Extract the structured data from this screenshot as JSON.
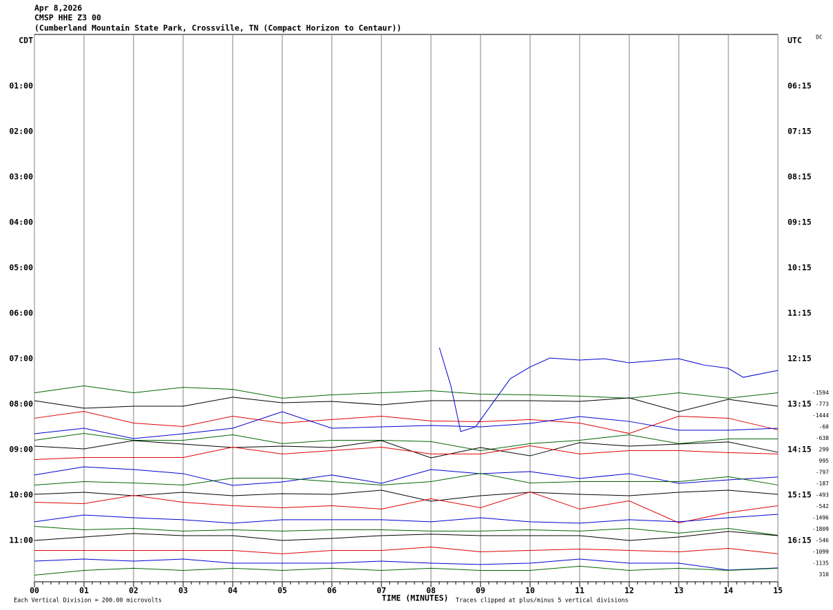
{
  "chart_data": {
    "type": "helicorder",
    "title": [
      "Apr 8,2026",
      "CMSP HHE Z3 00",
      "(Cumberland Mountain State Park, Crossville, TN (Compact Horizon to Centaur))"
    ],
    "corner_label": "DC",
    "xlabel": "TIME (MINUTES)",
    "footer_left": "Each Vertical Division =  200.00 microvolts",
    "footer_right": "Traces clipped at plus/minus 5 vertical divisions",
    "xlim": [
      0,
      15
    ],
    "xticks": [
      {
        "value": 0,
        "label": "00"
      },
      {
        "value": 1,
        "label": "01"
      },
      {
        "value": 2,
        "label": "02"
      },
      {
        "value": 3,
        "label": "03"
      },
      {
        "value": 4,
        "label": "04"
      },
      {
        "value": 5,
        "label": "05"
      },
      {
        "value": 6,
        "label": "06"
      },
      {
        "value": 7,
        "label": "07"
      },
      {
        "value": 8,
        "label": "08"
      },
      {
        "value": 9,
        "label": "09"
      },
      {
        "value": 10,
        "label": "10"
      },
      {
        "value": 11,
        "label": "11"
      },
      {
        "value": 12,
        "label": "12"
      },
      {
        "value": 13,
        "label": "13"
      },
      {
        "value": 14,
        "label": "14"
      },
      {
        "value": 15,
        "label": "15"
      }
    ],
    "ylim": [
      -0.55,
      47.64
    ],
    "yticks": [
      {
        "value": 0,
        "label": "CDT"
      },
      {
        "value": 4,
        "label": "01:00"
      },
      {
        "value": 8,
        "label": "02:00"
      },
      {
        "value": 12,
        "label": "03:00"
      },
      {
        "value": 16,
        "label": "04:00"
      },
      {
        "value": 20,
        "label": "05:00"
      },
      {
        "value": 24,
        "label": "06:00"
      },
      {
        "value": 28,
        "label": "07:00"
      },
      {
        "value": 32,
        "label": "08:00"
      },
      {
        "value": 36,
        "label": "09:00"
      },
      {
        "value": 40,
        "label": "10:00"
      },
      {
        "value": 44,
        "label": "11:00"
      }
    ],
    "y2ticks": [
      {
        "value": 0,
        "label": "UTC"
      },
      {
        "value": 4,
        "label": "06:15"
      },
      {
        "value": 8,
        "label": "07:15"
      },
      {
        "value": 12,
        "label": "08:15"
      },
      {
        "value": 16,
        "label": "09:15"
      },
      {
        "value": 20,
        "label": "10:15"
      },
      {
        "value": 24,
        "label": "11:15"
      },
      {
        "value": 28,
        "label": "12:15"
      },
      {
        "value": 32,
        "label": "13:15"
      },
      {
        "value": 36,
        "label": "14:15"
      },
      {
        "value": 40,
        "label": "15:15"
      },
      {
        "value": 44,
        "label": "16:15"
      }
    ],
    "trace_labels": [
      {
        "value": 31,
        "label": "-1594"
      },
      {
        "value": 32,
        "label": "-773"
      },
      {
        "value": 33,
        "label": "-1444"
      },
      {
        "value": 34,
        "label": "-60"
      },
      {
        "value": 35,
        "label": "-638"
      },
      {
        "value": 36,
        "label": "299"
      },
      {
        "value": 37,
        "label": "995"
      },
      {
        "value": 38,
        "label": "-797"
      },
      {
        "value": 39,
        "label": "-187"
      },
      {
        "value": 40,
        "label": "-493"
      },
      {
        "value": 41,
        "label": "-542"
      },
      {
        "value": 42,
        "label": "-1496"
      },
      {
        "value": 43,
        "label": "-1809"
      },
      {
        "value": 44,
        "label": "-546"
      },
      {
        "value": 45,
        "label": "-1099"
      },
      {
        "value": 46,
        "label": "-1135"
      },
      {
        "value": 47,
        "label": "310"
      }
    ],
    "grid": true,
    "x": [
      0,
      1,
      2,
      3,
      4,
      5,
      6,
      7,
      8,
      9,
      10,
      11,
      12,
      13,
      14,
      15
    ],
    "series": [
      {
        "color": "#006400",
        "values": [
          31,
          30.39,
          31,
          30.52,
          30.7,
          31.48,
          31.18,
          31,
          30.82,
          31.12,
          31.18,
          31.3,
          31.48,
          31,
          31.48,
          31
        ]
      },
      {
        "color": "#000000",
        "values": [
          31.7,
          32.36,
          32.18,
          32.18,
          31.39,
          31.88,
          31.76,
          32.06,
          31.7,
          31.7,
          31.7,
          31.76,
          31.45,
          32.67,
          31.58,
          32.18
        ]
      },
      {
        "color": "#e00000",
        "values": [
          33.24,
          32.64,
          33.67,
          33.97,
          33.06,
          33.67,
          33.36,
          33.06,
          33.48,
          33.55,
          33.36,
          33.67,
          34.58,
          33.06,
          33.24,
          34.27
        ]
      },
      {
        "color": "#0000d0",
        "values": [
          34.61,
          34.12,
          35.03,
          34.61,
          34.12,
          32.67,
          34.12,
          34,
          33.88,
          34,
          33.7,
          33.09,
          33.52,
          34.3,
          34.3,
          34.12
        ]
      },
      {
        "color": "#006400",
        "values": [
          35.18,
          34.58,
          35.18,
          35.18,
          34.7,
          35.48,
          35.18,
          35.18,
          35.3,
          36.09,
          35.48,
          35.18,
          34.7,
          35.48,
          35.06,
          35.06
        ]
      },
      {
        "color": "#000000",
        "values": [
          35.7,
          35.94,
          35.21,
          35.52,
          35.82,
          35.7,
          35.82,
          35.21,
          36.73,
          35.82,
          36.55,
          35.39,
          35.7,
          35.52,
          35.33,
          36.24
        ]
      },
      {
        "color": "#e00000",
        "values": [
          36.88,
          36.7,
          36.7,
          36.7,
          35.79,
          36.39,
          36.09,
          35.79,
          36.39,
          36.39,
          35.67,
          36.39,
          36.09,
          36.09,
          36.27,
          36.39
        ]
      },
      {
        "color": "#0000d0",
        "values": [
          38.24,
          37.52,
          37.76,
          38.12,
          39.15,
          38.85,
          38.24,
          38.97,
          37.76,
          38.12,
          37.94,
          38.55,
          38.12,
          38.97,
          38.67,
          38.42
        ]
      },
      {
        "color": "#006400",
        "values": [
          39.12,
          38.82,
          38.94,
          39.12,
          38.52,
          38.52,
          38.82,
          39.12,
          38.82,
          38.09,
          38.94,
          38.82,
          38.82,
          38.82,
          38.39,
          39.12
        ]
      },
      {
        "color": "#000000",
        "values": [
          39.94,
          39.76,
          40.06,
          39.76,
          40.06,
          39.88,
          39.94,
          39.58,
          40.55,
          40.06,
          39.76,
          39.94,
          40.06,
          39.76,
          39.58,
          39.94
        ]
      },
      {
        "color": "#e00000",
        "values": [
          40.64,
          40.76,
          40.03,
          40.64,
          40.94,
          41.12,
          40.94,
          41.24,
          40.33,
          41.12,
          39.73,
          41.24,
          40.52,
          42.45,
          41.55,
          40.94
        ]
      },
      {
        "color": "#0000d0",
        "values": [
          42.36,
          41.76,
          42,
          42.18,
          42.48,
          42.18,
          42.18,
          42.18,
          42.36,
          42,
          42.36,
          42.48,
          42.18,
          42.36,
          42,
          41.7
        ]
      },
      {
        "color": "#006400",
        "values": [
          42.76,
          43.06,
          42.94,
          43.18,
          43.06,
          43.18,
          43.06,
          43.06,
          43.18,
          43.18,
          43.06,
          43.18,
          42.94,
          43.36,
          42.94,
          43.55
        ]
      },
      {
        "color": "#000000",
        "values": [
          44,
          43.7,
          43.39,
          43.58,
          43.58,
          44,
          43.82,
          43.58,
          43.45,
          43.58,
          43.58,
          43.58,
          44,
          43.7,
          43.21,
          43.58
        ]
      },
      {
        "color": "#e00000",
        "values": [
          44.88,
          44.88,
          44.88,
          44.88,
          44.88,
          45.18,
          44.88,
          44.88,
          44.58,
          45,
          44.88,
          44.76,
          44.88,
          45,
          44.7,
          45.18
        ]
      },
      {
        "color": "#0000d0",
        "values": [
          45.82,
          45.64,
          45.82,
          45.64,
          46,
          46,
          46,
          45.82,
          46,
          46.12,
          46,
          45.64,
          46,
          46,
          46.61,
          46.42
        ]
      },
      {
        "color": "#006400",
        "values": [
          47.06,
          46.64,
          46.45,
          46.64,
          46.45,
          46.64,
          46.45,
          46.64,
          46.45,
          46.64,
          46.64,
          46.27,
          46.64,
          46.45,
          46.64,
          46.45
        ]
      },
      {
        "color": "#0000d0",
        "x": [
          8.17,
          8.4,
          8.6,
          8.9,
          9.2,
          9.6,
          10,
          10.4,
          11,
          11.5,
          12,
          13,
          13.5,
          14,
          14.3,
          15
        ],
        "values": [
          27.03,
          30.36,
          34.42,
          34,
          32.18,
          29.76,
          28.73,
          27.94,
          28.12,
          28,
          28.36,
          28,
          28.55,
          28.85,
          29.64,
          29.03
        ]
      }
    ]
  }
}
